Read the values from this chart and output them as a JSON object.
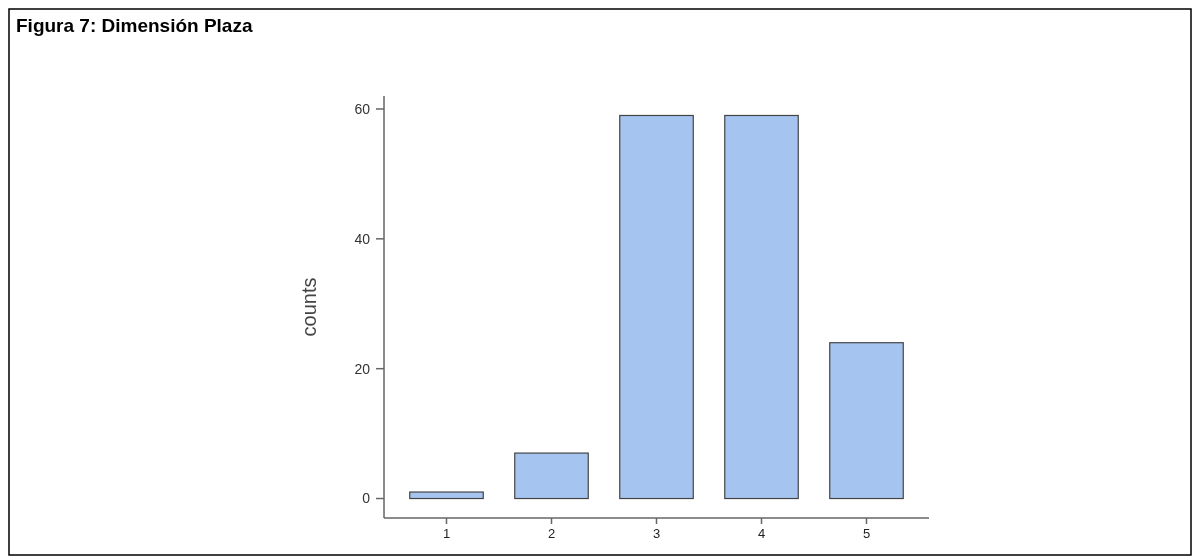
{
  "chart_data": {
    "type": "bar",
    "title": "Figura 7: Dimensión Plaza",
    "ylabel": "counts",
    "categories": [
      "1",
      "2",
      "3",
      "4",
      "5"
    ],
    "values": [
      1,
      7,
      59,
      59,
      24
    ],
    "color": "#a6c4f0",
    "ylim": [
      -3,
      62
    ],
    "yticks": [
      0,
      20,
      40,
      60
    ],
    "grid": false
  }
}
